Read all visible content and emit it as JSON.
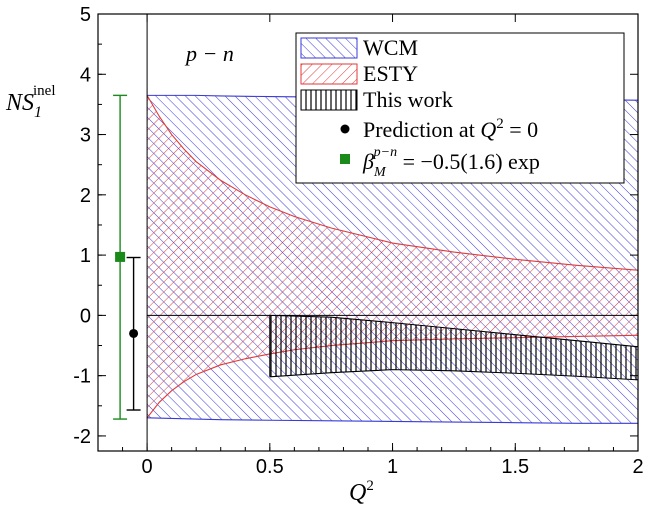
{
  "chart_data": {
    "type": "area",
    "title": "",
    "xlabel": "Q",
    "xlabel_sup": "2",
    "ylabel": "NS",
    "ylabel_sub": "1",
    "ylabel_sup": "inel",
    "annotation": "p − n",
    "xlim": [
      -0.2,
      2.0
    ],
    "ylim": [
      -2.25,
      5.0
    ],
    "xticks": [
      0,
      0.5,
      1,
      1.5,
      2
    ],
    "xtick_labels": [
      "0",
      "0.5",
      "1",
      "1.5",
      "2"
    ],
    "yticks": [
      -2,
      -1,
      0,
      1,
      2,
      3,
      4,
      5
    ],
    "ytick_labels": [
      "-2",
      "-1",
      "0",
      "1",
      "2",
      "3",
      "4",
      "5"
    ],
    "grid": false,
    "legend_position": "top-right",
    "series": [
      {
        "name": "WCM",
        "kind": "band",
        "color": "#3a3ad8",
        "x": [
          0,
          0.1,
          0.2,
          0.3,
          0.5,
          0.75,
          1.0,
          1.25,
          1.5,
          1.75,
          2.0
        ],
        "upper": [
          3.65,
          3.65,
          3.65,
          3.64,
          3.63,
          3.62,
          3.61,
          3.6,
          3.59,
          3.58,
          3.57
        ],
        "lower": [
          -1.7,
          -1.71,
          -1.72,
          -1.73,
          -1.74,
          -1.75,
          -1.76,
          -1.77,
          -1.78,
          -1.79,
          -1.79
        ]
      },
      {
        "name": "ESTY",
        "kind": "band",
        "color": "#e03a3a",
        "x": [
          0,
          0.05,
          0.1,
          0.15,
          0.2,
          0.3,
          0.4,
          0.5,
          0.6,
          0.75,
          1.0,
          1.25,
          1.5,
          1.75,
          2.0
        ],
        "upper": [
          3.65,
          3.3,
          3.0,
          2.76,
          2.55,
          2.24,
          2.0,
          1.8,
          1.64,
          1.45,
          1.2,
          1.05,
          0.93,
          0.83,
          0.75
        ],
        "lower": [
          -1.7,
          -1.44,
          -1.25,
          -1.1,
          -0.98,
          -0.82,
          -0.72,
          -0.64,
          -0.57,
          -0.5,
          -0.42,
          -0.39,
          -0.37,
          -0.35,
          -0.33
        ]
      },
      {
        "name": "This work",
        "kind": "band",
        "color": "#000000",
        "x": [
          0.5,
          0.75,
          1.0,
          1.25,
          1.5,
          1.75,
          2.0
        ],
        "upper": [
          0.0,
          -0.03,
          -0.12,
          -0.22,
          -0.32,
          -0.42,
          -0.52
        ],
        "lower": [
          -1.02,
          -0.95,
          -0.9,
          -0.92,
          -0.96,
          -1.01,
          -1.07
        ]
      },
      {
        "name": "Prediction at Q² = 0",
        "legend_text": "Prediction at ",
        "legend_math": "Q",
        "legend_sup": "2",
        "legend_tail": " = 0",
        "kind": "point",
        "marker": "circle",
        "color": "#000000",
        "x": -0.055,
        "y": -0.3,
        "yerr_low": -1.57,
        "yerr_high": 0.96
      },
      {
        "name": "β_M^{p−n} = −0.5(1.6) exp",
        "legend_math": "β",
        "legend_sub": "M",
        "legend_sup": "p−n",
        "legend_tail": " = −0.5(1.6) exp",
        "kind": "point",
        "marker": "square",
        "color": "#1a8a1a",
        "x": -0.11,
        "y": 0.97,
        "yerr_low": -1.72,
        "yerr_high": 3.65
      }
    ]
  }
}
